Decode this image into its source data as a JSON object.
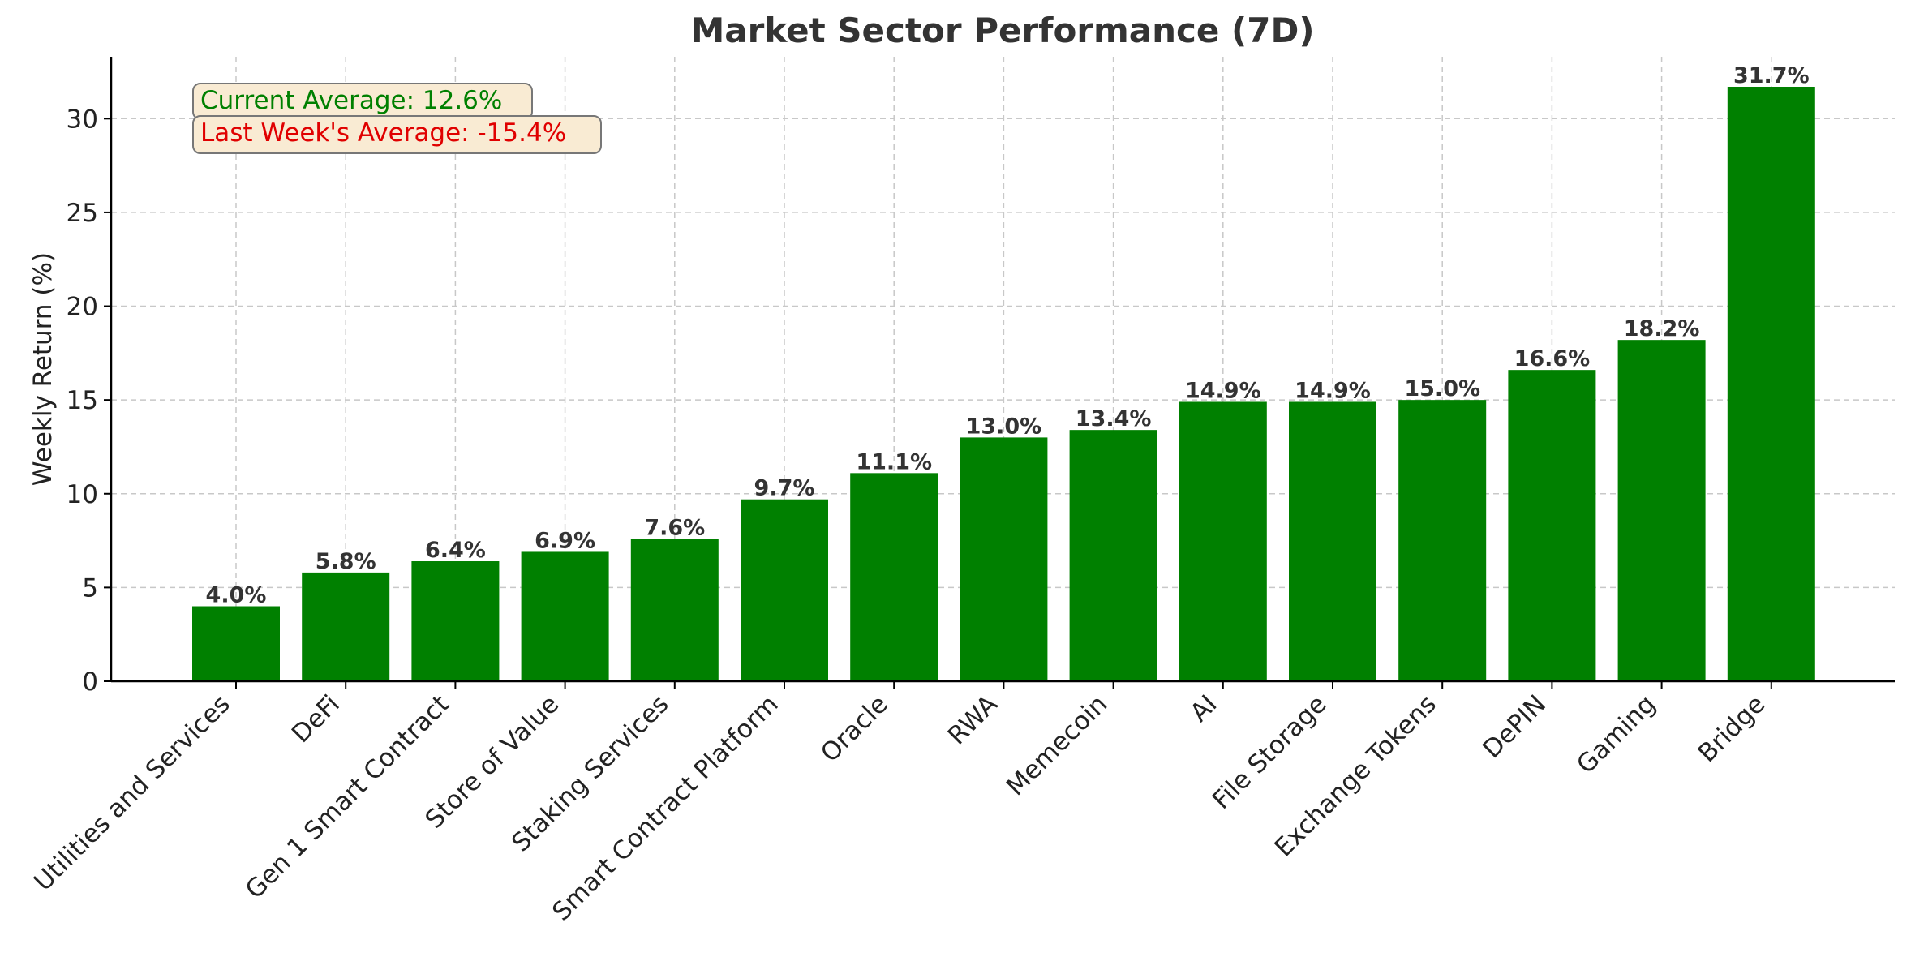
{
  "chart_data": {
    "type": "bar",
    "title": "Market Sector Performance (7D)",
    "xlabel": "",
    "ylabel": "Weekly Return (%)",
    "ylim": [
      0,
      33.3
    ],
    "yticks": [
      0,
      5,
      10,
      15,
      20,
      25,
      30
    ],
    "grid": true,
    "bar_color": "#008000",
    "categories": [
      "Utilities and Services",
      "DeFi",
      "Gen 1 Smart Contract",
      "Store of Value",
      "Staking Services",
      "Smart Contract Platform",
      "Oracle",
      "RWA",
      "Memecoin",
      "AI",
      "File Storage",
      "Exchange Tokens",
      "DePIN",
      "Gaming",
      "Bridge"
    ],
    "values": [
      4.0,
      5.8,
      6.4,
      6.9,
      7.6,
      9.7,
      11.1,
      13.0,
      13.4,
      14.9,
      14.9,
      15.0,
      16.6,
      18.2,
      31.7
    ],
    "data_labels": [
      "4.0%",
      "5.8%",
      "6.4%",
      "6.9%",
      "7.6%",
      "9.7%",
      "11.1%",
      "13.0%",
      "13.4%",
      "14.9%",
      "14.9%",
      "15.0%",
      "16.6%",
      "18.2%",
      "31.7%"
    ],
    "annotations": {
      "current_average": "Current Average: 12.6%",
      "last_week_average": "Last Week's Average: -15.4%",
      "current_color": "#008000",
      "last_week_color": "#e00000",
      "box_fill": "#f9ebd3",
      "box_stroke": "#777777"
    }
  }
}
